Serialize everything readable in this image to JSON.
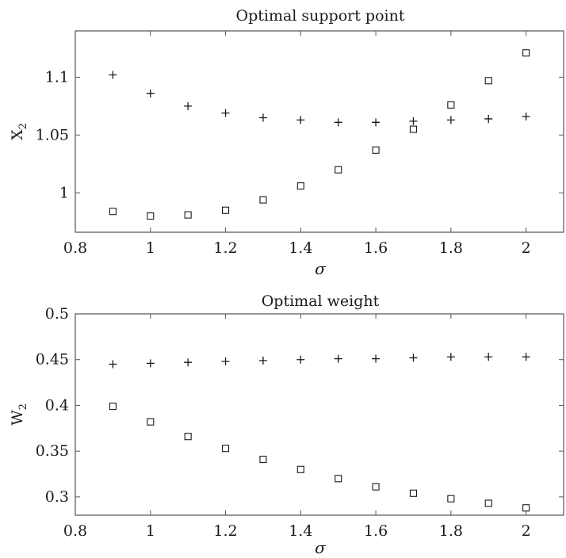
{
  "chart_data": [
    {
      "type": "scatter",
      "title": "Optimal support point",
      "xlabel": "σ",
      "ylabel_base": "X",
      "ylabel_sub": "2",
      "xlim": [
        0.8,
        2.1
      ],
      "ylim": [
        0.966,
        1.14
      ],
      "xticks": [
        0.8,
        1,
        1.2,
        1.4,
        1.6,
        1.8,
        2
      ],
      "xtick_labels": [
        "0.8",
        "1",
        "1.2",
        "1.4",
        "1.6",
        "1.8",
        "2"
      ],
      "yticks": [
        1,
        1.05,
        1.1
      ],
      "ytick_labels": [
        "1",
        "1.05",
        "1.1"
      ],
      "grid": false,
      "series": [
        {
          "marker": "plus",
          "x": [
            0.9,
            1.0,
            1.1,
            1.2,
            1.3,
            1.4,
            1.5,
            1.6,
            1.7,
            1.8,
            1.9,
            2.0
          ],
          "y": [
            1.102,
            1.086,
            1.075,
            1.069,
            1.065,
            1.063,
            1.061,
            1.061,
            1.062,
            1.063,
            1.064,
            1.066
          ]
        },
        {
          "marker": "square",
          "x": [
            0.9,
            1.0,
            1.1,
            1.2,
            1.3,
            1.4,
            1.5,
            1.6,
            1.7,
            1.8,
            1.9,
            2.0
          ],
          "y": [
            0.984,
            0.98,
            0.981,
            0.985,
            0.994,
            1.006,
            1.02,
            1.037,
            1.055,
            1.076,
            1.097,
            1.121
          ]
        }
      ]
    },
    {
      "type": "scatter",
      "title": "Optimal weight",
      "xlabel": "σ",
      "ylabel_base": "W",
      "ylabel_sub": "2",
      "xlim": [
        0.8,
        2.1
      ],
      "ylim": [
        0.28,
        0.5
      ],
      "xticks": [
        0.8,
        1,
        1.2,
        1.4,
        1.6,
        1.8,
        2
      ],
      "xtick_labels": [
        "0.8",
        "1",
        "1.2",
        "1.4",
        "1.6",
        "1.8",
        "2"
      ],
      "yticks": [
        0.3,
        0.35,
        0.4,
        0.45,
        0.5
      ],
      "ytick_labels": [
        "0.3",
        "0.35",
        "0.4",
        "0.45",
        "0.5"
      ],
      "grid": false,
      "series": [
        {
          "marker": "plus",
          "x": [
            0.9,
            1.0,
            1.1,
            1.2,
            1.3,
            1.4,
            1.5,
            1.6,
            1.7,
            1.8,
            1.9,
            2.0
          ],
          "y": [
            0.445,
            0.446,
            0.447,
            0.448,
            0.449,
            0.45,
            0.451,
            0.451,
            0.452,
            0.453,
            0.453,
            0.453
          ]
        },
        {
          "marker": "square",
          "x": [
            0.9,
            1.0,
            1.1,
            1.2,
            1.3,
            1.4,
            1.5,
            1.6,
            1.7,
            1.8,
            1.9,
            2.0
          ],
          "y": [
            0.399,
            0.382,
            0.366,
            0.353,
            0.341,
            0.33,
            0.32,
            0.311,
            0.304,
            0.298,
            0.293,
            0.288
          ]
        }
      ]
    }
  ]
}
